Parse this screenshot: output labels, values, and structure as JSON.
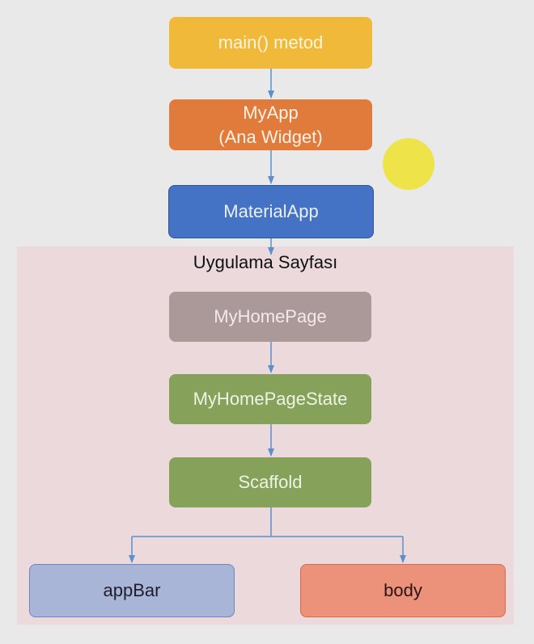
{
  "diagram": {
    "region_title": "Uygulama Sayfası",
    "nodes": {
      "main": "main() metod",
      "myapp": "MyApp\n(Ana Widget)",
      "material_app": "MaterialApp",
      "my_home_page": "MyHomePage",
      "my_home_page_state": "MyHomePageState",
      "scaffold": "Scaffold",
      "app_bar": "appBar",
      "body": "body"
    },
    "edges": [
      [
        "main",
        "myapp"
      ],
      [
        "myapp",
        "material_app"
      ],
      [
        "material_app",
        "my_home_page"
      ],
      [
        "my_home_page",
        "my_home_page_state"
      ],
      [
        "my_home_page_state",
        "scaffold"
      ],
      [
        "scaffold",
        "app_bar"
      ],
      [
        "scaffold",
        "body"
      ]
    ],
    "colors": {
      "main": "#f0b93a",
      "myapp": "#e07b3c",
      "material_app": "#4472c4",
      "my_home_page": "#ab9898",
      "my_home_page_state": "#86a15a",
      "scaffold": "#86a15a",
      "app_bar": "#a8b5d6",
      "body": "#ec917a",
      "region": "#ecd9dc",
      "connector": "#5b8fd0",
      "pointer": "#eee23a"
    }
  }
}
